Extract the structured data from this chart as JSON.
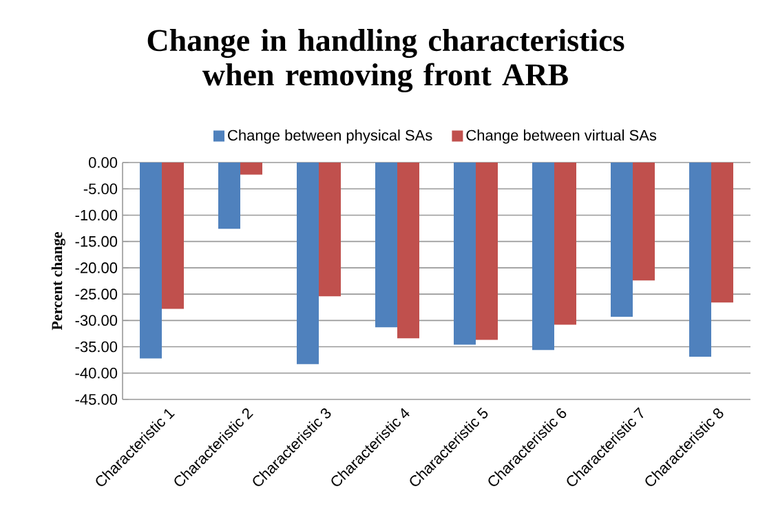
{
  "chart_data": {
    "type": "bar",
    "title": "Change in handling characteristics when removing front ARB",
    "ylabel": "Percent change",
    "categories": [
      "Characteristic 1",
      "Characteristic 2",
      "Characteristic 3",
      "Characteristic 4",
      "Characteristic 5",
      "Characteristic 6",
      "Characteristic 7",
      "Characteristic 8"
    ],
    "series": [
      {
        "name": "Change between physical SAs",
        "color": "#4f81bd",
        "values": [
          -37.2,
          -12.6,
          -38.3,
          -31.3,
          -34.6,
          -35.6,
          -29.3,
          -36.9
        ]
      },
      {
        "name": "Change between virtual SAs",
        "color": "#c0504d",
        "values": [
          -27.8,
          -2.3,
          -25.4,
          -33.4,
          -33.7,
          -30.8,
          -22.4,
          -26.6
        ]
      }
    ],
    "ylim": [
      -45,
      0
    ],
    "yticks": [
      {
        "value": 0,
        "label": "0.00"
      },
      {
        "value": -5,
        "label": "-5.00"
      },
      {
        "value": -10,
        "label": "-10.00"
      },
      {
        "value": -15,
        "label": "-15.00"
      },
      {
        "value": -20,
        "label": "-20.00"
      },
      {
        "value": -25,
        "label": "-25.00"
      },
      {
        "value": -30,
        "label": "-30.00"
      },
      {
        "value": -35,
        "label": "-35.00"
      },
      {
        "value": -40,
        "label": "-40.00"
      },
      {
        "value": -45,
        "label": "-45.00"
      }
    ],
    "grid": "y",
    "legend": "top"
  }
}
